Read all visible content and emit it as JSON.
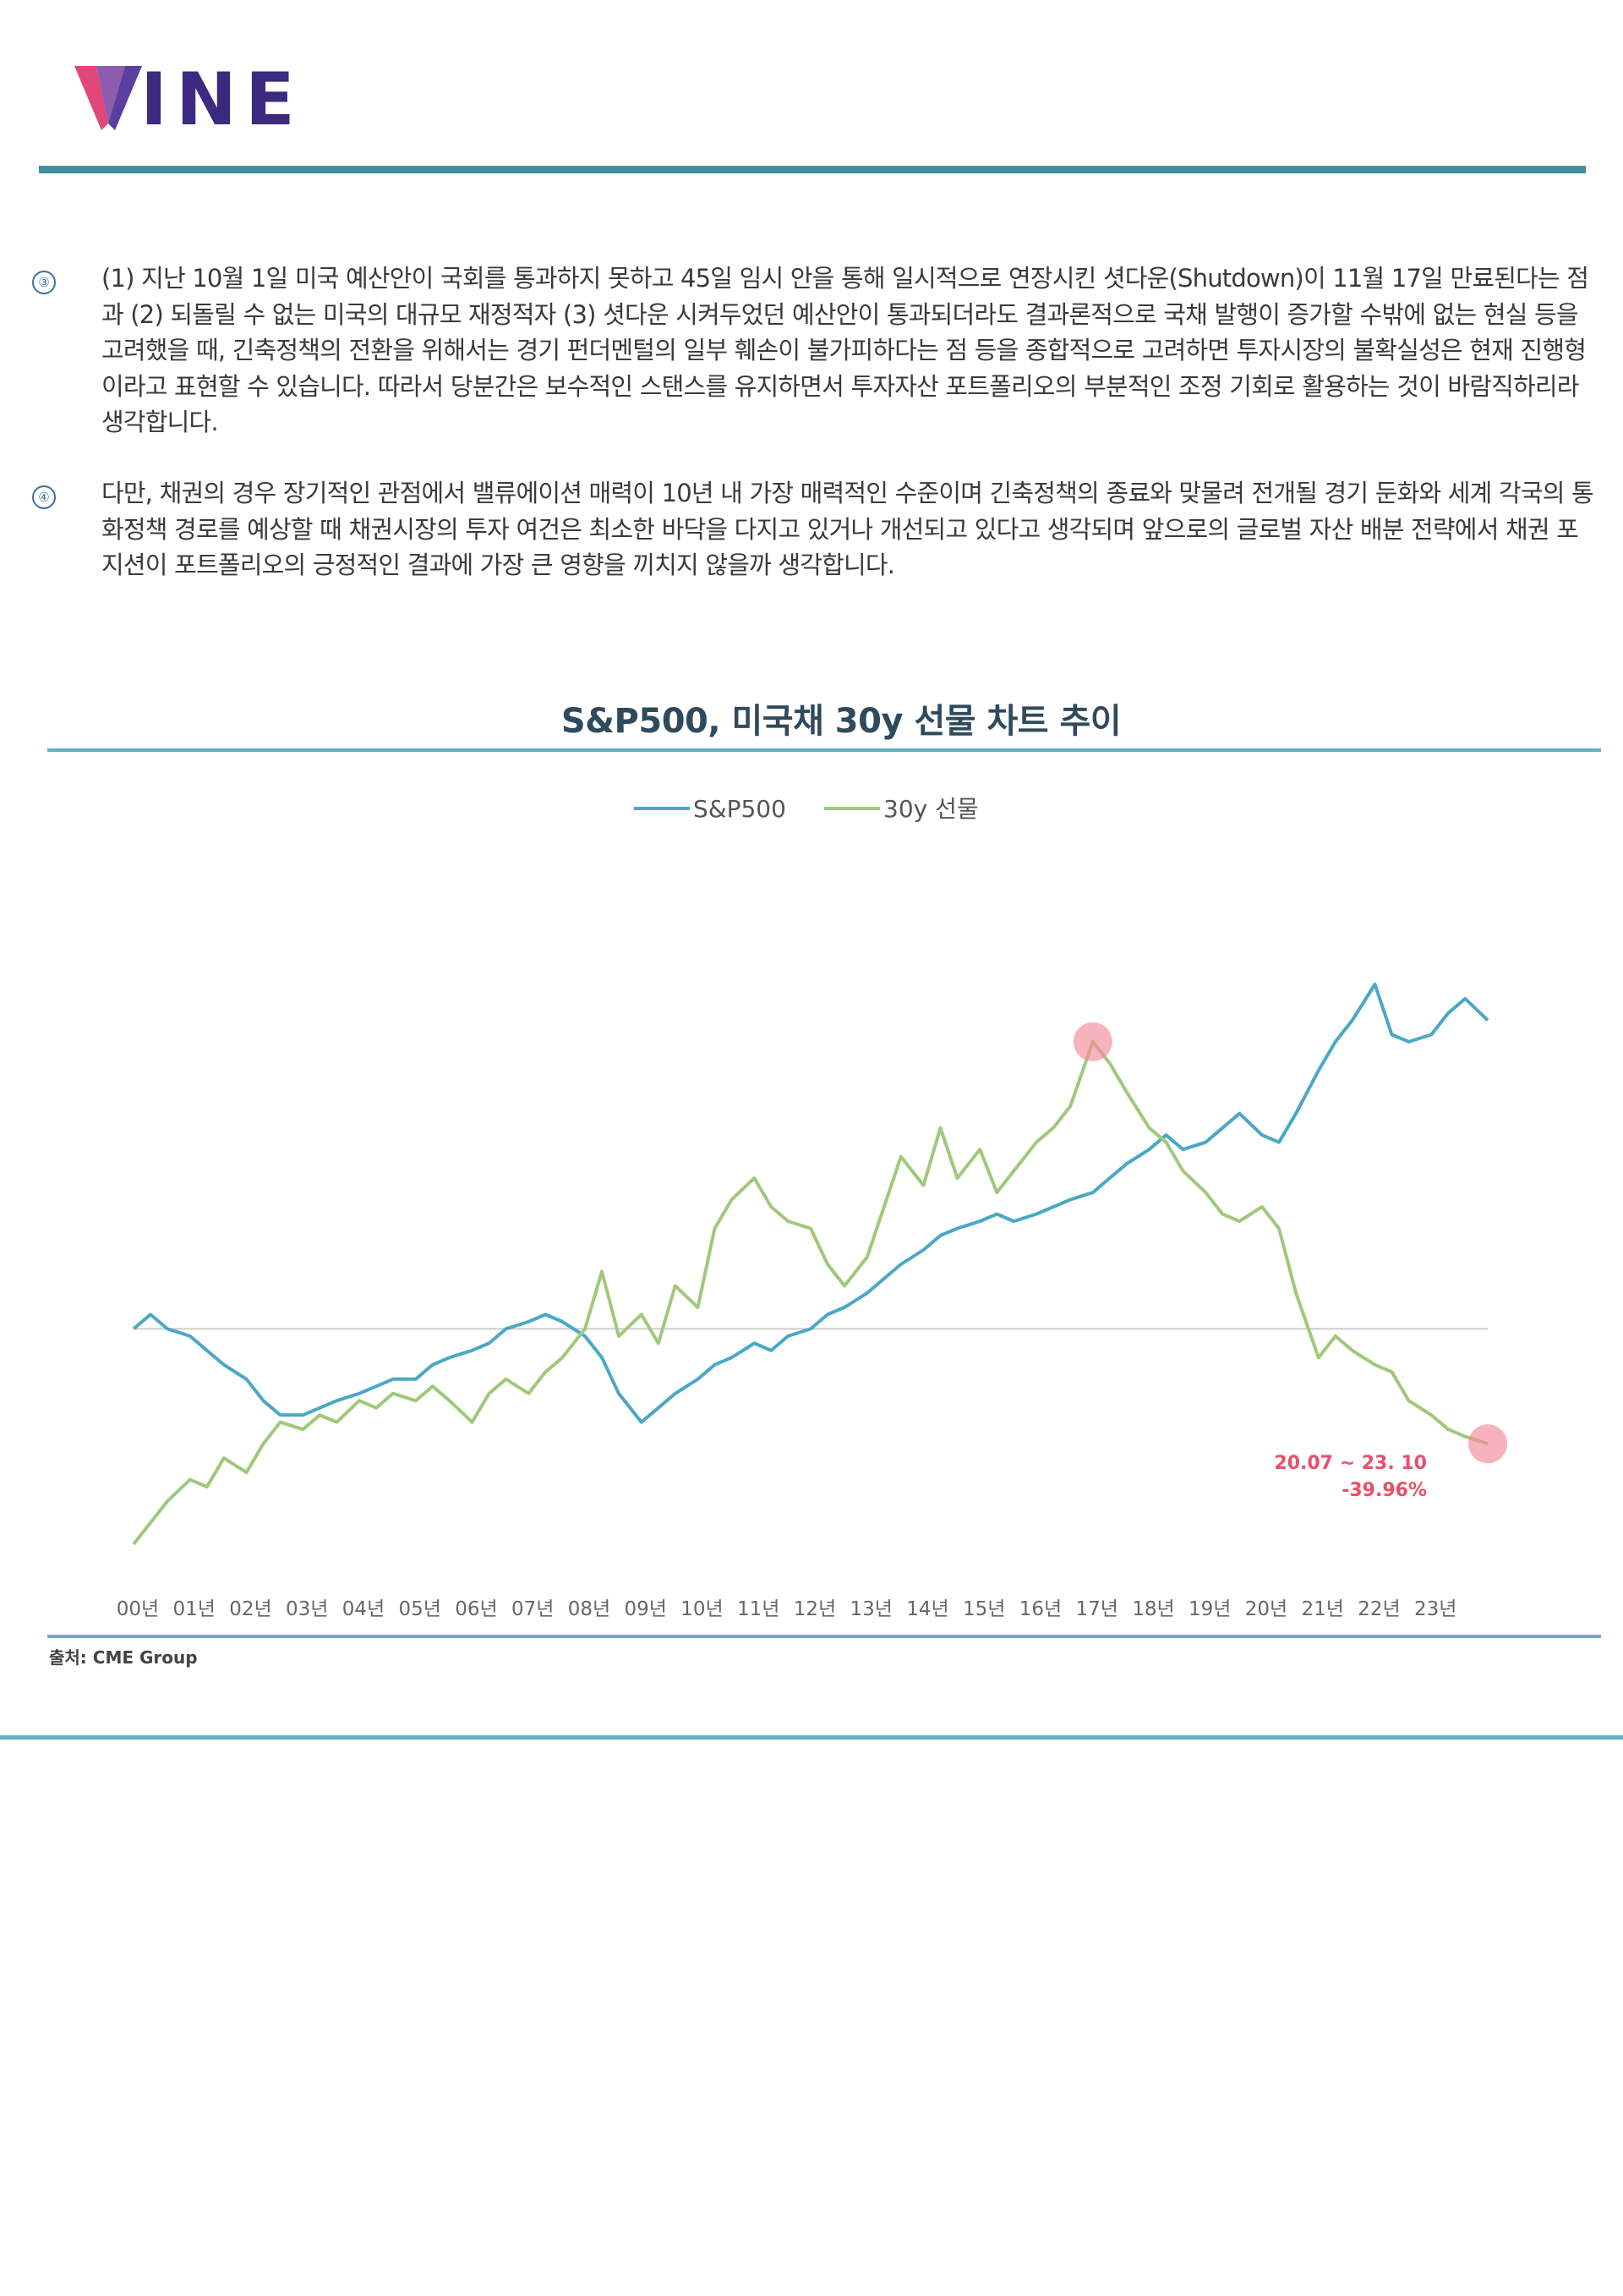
{
  "brand": {
    "logo_text": "INE",
    "logo_full": "VINE",
    "colors": {
      "v_left": "#e0487a",
      "v_right": "#5a3fa0",
      "text": "#3b2a80",
      "rule": "#3f8f9a"
    }
  },
  "paragraphs": [
    {
      "marker": "③",
      "text": "(1) 지난 10월 1일 미국 예산안이 국회를 통과하지 못하고 45일 임시 안을 통해 일시적으로 연장시킨 셧다운(Shutdown)이 11월 17일 만료된다는 점과 (2) 되돌릴 수 없는 미국의 대규모 재정적자 (3) 셧다운 시켜두었던 예산안이 통과되더라도 결과론적으로 국채 발행이 증가할 수밖에 없는 현실 등을 고려했을 때, 긴축정책의 전환을 위해서는 경기 펀더멘털의 일부 훼손이 불가피하다는 점 등을 종합적으로 고려하면 투자시장의 불확실성은 현재 진행형이라고 표현할 수 있습니다. 따라서 당분간은 보수적인 스탠스를 유지하면서 투자자산 포트폴리오의 부분적인 조정 기회로 활용하는 것이 바람직하리라 생각합니다."
    },
    {
      "marker": "④",
      "text": "다만, 채권의 경우 장기적인 관점에서 밸류에이션 매력이 10년 내 가장 매력적인 수준이며 긴축정책의 종료와 맞물려 전개될  경기 둔화와 세계 각국의 통화정책 경로를 예상할 때 채권시장의 투자 여건은 최소한 바닥을 다지고 있거나 개선되고 있다고 생각되며 앞으로의 글로벌 자산 배분 전략에서 채권 포지션이 포트폴리오의 긍정적인 결과에 가장 큰 영향을 끼치지 않을까 생각합니다."
    }
  ],
  "chart": {
    "title": "S&P500, 미국채 30y 선물 차트 추이",
    "source": "출처: CME Group"
  },
  "chart_data": {
    "type": "line",
    "title": "S&P500, 미국채 30y 선물 차트 추이",
    "xlabel": "",
    "ylabel": "",
    "x_tick_labels": [
      "00년",
      "01년",
      "02년",
      "03년",
      "04년",
      "05년",
      "06년",
      "07년",
      "08년",
      "09년",
      "10년",
      "11년",
      "12년",
      "13년",
      "14년",
      "15년",
      "16년",
      "17년",
      "18년",
      "19년",
      "20년",
      "21년",
      "22년",
      "23년"
    ],
    "legend": {
      "placement": "top-center"
    },
    "grid": false,
    "baseline": "horizontal reference line near start level",
    "series": [
      {
        "name": "S&P500",
        "color": "#4aa8c6",
        "points": [
          [
            0,
            1.0
          ],
          [
            0.3,
            1.02
          ],
          [
            0.6,
            1.0
          ],
          [
            1.0,
            0.99
          ],
          [
            1.3,
            0.97
          ],
          [
            1.6,
            0.95
          ],
          [
            2.0,
            0.93
          ],
          [
            2.3,
            0.9
          ],
          [
            2.6,
            0.88
          ],
          [
            3.0,
            0.88
          ],
          [
            3.3,
            0.89
          ],
          [
            3.6,
            0.9
          ],
          [
            4.0,
            0.91
          ],
          [
            4.3,
            0.92
          ],
          [
            4.6,
            0.93
          ],
          [
            5.0,
            0.93
          ],
          [
            5.3,
            0.95
          ],
          [
            5.6,
            0.96
          ],
          [
            6.0,
            0.97
          ],
          [
            6.3,
            0.98
          ],
          [
            6.6,
            1.0
          ],
          [
            7.0,
            1.01
          ],
          [
            7.3,
            1.02
          ],
          [
            7.6,
            1.01
          ],
          [
            8.0,
            0.99
          ],
          [
            8.3,
            0.96
          ],
          [
            8.6,
            0.91
          ],
          [
            9.0,
            0.87
          ],
          [
            9.3,
            0.89
          ],
          [
            9.6,
            0.91
          ],
          [
            10.0,
            0.93
          ],
          [
            10.3,
            0.95
          ],
          [
            10.6,
            0.96
          ],
          [
            11.0,
            0.98
          ],
          [
            11.3,
            0.97
          ],
          [
            11.6,
            0.99
          ],
          [
            12.0,
            1.0
          ],
          [
            12.3,
            1.02
          ],
          [
            12.6,
            1.03
          ],
          [
            13.0,
            1.05
          ],
          [
            13.3,
            1.07
          ],
          [
            13.6,
            1.09
          ],
          [
            14.0,
            1.11
          ],
          [
            14.3,
            1.13
          ],
          [
            14.6,
            1.14
          ],
          [
            15.0,
            1.15
          ],
          [
            15.3,
            1.16
          ],
          [
            15.6,
            1.15
          ],
          [
            16.0,
            1.16
          ],
          [
            16.3,
            1.17
          ],
          [
            16.6,
            1.18
          ],
          [
            17.0,
            1.19
          ],
          [
            17.3,
            1.21
          ],
          [
            17.6,
            1.23
          ],
          [
            18.0,
            1.25
          ],
          [
            18.3,
            1.27
          ],
          [
            18.6,
            1.25
          ],
          [
            19.0,
            1.26
          ],
          [
            19.3,
            1.28
          ],
          [
            19.6,
            1.3
          ],
          [
            20.0,
            1.27
          ],
          [
            20.3,
            1.26
          ],
          [
            20.6,
            1.3
          ],
          [
            21.0,
            1.36
          ],
          [
            21.3,
            1.4
          ],
          [
            21.6,
            1.43
          ],
          [
            22.0,
            1.48
          ],
          [
            22.3,
            1.41
          ],
          [
            22.6,
            1.4
          ],
          [
            23.0,
            1.41
          ],
          [
            23.3,
            1.44
          ],
          [
            23.6,
            1.46
          ],
          [
            24.0,
            1.43
          ]
        ]
      },
      {
        "name": "30y 선물",
        "color": "#9fc97a",
        "points": [
          [
            0,
            0.7
          ],
          [
            0.3,
            0.73
          ],
          [
            0.6,
            0.76
          ],
          [
            1.0,
            0.79
          ],
          [
            1.3,
            0.78
          ],
          [
            1.6,
            0.82
          ],
          [
            2.0,
            0.8
          ],
          [
            2.3,
            0.84
          ],
          [
            2.6,
            0.87
          ],
          [
            3.0,
            0.86
          ],
          [
            3.3,
            0.88
          ],
          [
            3.6,
            0.87
          ],
          [
            4.0,
            0.9
          ],
          [
            4.3,
            0.89
          ],
          [
            4.6,
            0.91
          ],
          [
            5.0,
            0.9
          ],
          [
            5.3,
            0.92
          ],
          [
            5.6,
            0.9
          ],
          [
            6.0,
            0.87
          ],
          [
            6.3,
            0.91
          ],
          [
            6.6,
            0.93
          ],
          [
            7.0,
            0.91
          ],
          [
            7.3,
            0.94
          ],
          [
            7.6,
            0.96
          ],
          [
            8.0,
            1.0
          ],
          [
            8.3,
            1.08
          ],
          [
            8.6,
            0.99
          ],
          [
            9.0,
            1.02
          ],
          [
            9.3,
            0.98
          ],
          [
            9.6,
            1.06
          ],
          [
            10.0,
            1.03
          ],
          [
            10.3,
            1.14
          ],
          [
            10.6,
            1.18
          ],
          [
            11.0,
            1.21
          ],
          [
            11.3,
            1.17
          ],
          [
            11.6,
            1.15
          ],
          [
            12.0,
            1.14
          ],
          [
            12.3,
            1.09
          ],
          [
            12.6,
            1.06
          ],
          [
            13.0,
            1.1
          ],
          [
            13.3,
            1.17
          ],
          [
            13.6,
            1.24
          ],
          [
            14.0,
            1.2
          ],
          [
            14.3,
            1.28
          ],
          [
            14.6,
            1.21
          ],
          [
            15.0,
            1.25
          ],
          [
            15.3,
            1.19
          ],
          [
            15.6,
            1.22
          ],
          [
            16.0,
            1.26
          ],
          [
            16.3,
            1.28
          ],
          [
            16.6,
            1.31
          ],
          [
            17.0,
            1.4
          ],
          [
            17.3,
            1.37
          ],
          [
            17.6,
            1.33
          ],
          [
            18.0,
            1.28
          ],
          [
            18.3,
            1.26
          ],
          [
            18.6,
            1.22
          ],
          [
            19.0,
            1.19
          ],
          [
            19.3,
            1.16
          ],
          [
            19.6,
            1.15
          ],
          [
            20.0,
            1.17
          ],
          [
            20.3,
            1.14
          ],
          [
            20.6,
            1.05
          ],
          [
            21.0,
            0.96
          ],
          [
            21.3,
            0.99
          ],
          [
            21.6,
            0.97
          ],
          [
            22.0,
            0.95
          ],
          [
            22.3,
            0.94
          ],
          [
            22.6,
            0.9
          ],
          [
            23.0,
            0.88
          ],
          [
            23.3,
            0.86
          ],
          [
            23.6,
            0.85
          ],
          [
            24.0,
            0.84
          ]
        ]
      }
    ],
    "annotations": [
      {
        "text": "20.07 ~ 23. 10",
        "color": "#e8506a"
      },
      {
        "text": "-39.96%",
        "color": "#e8506a"
      }
    ]
  }
}
